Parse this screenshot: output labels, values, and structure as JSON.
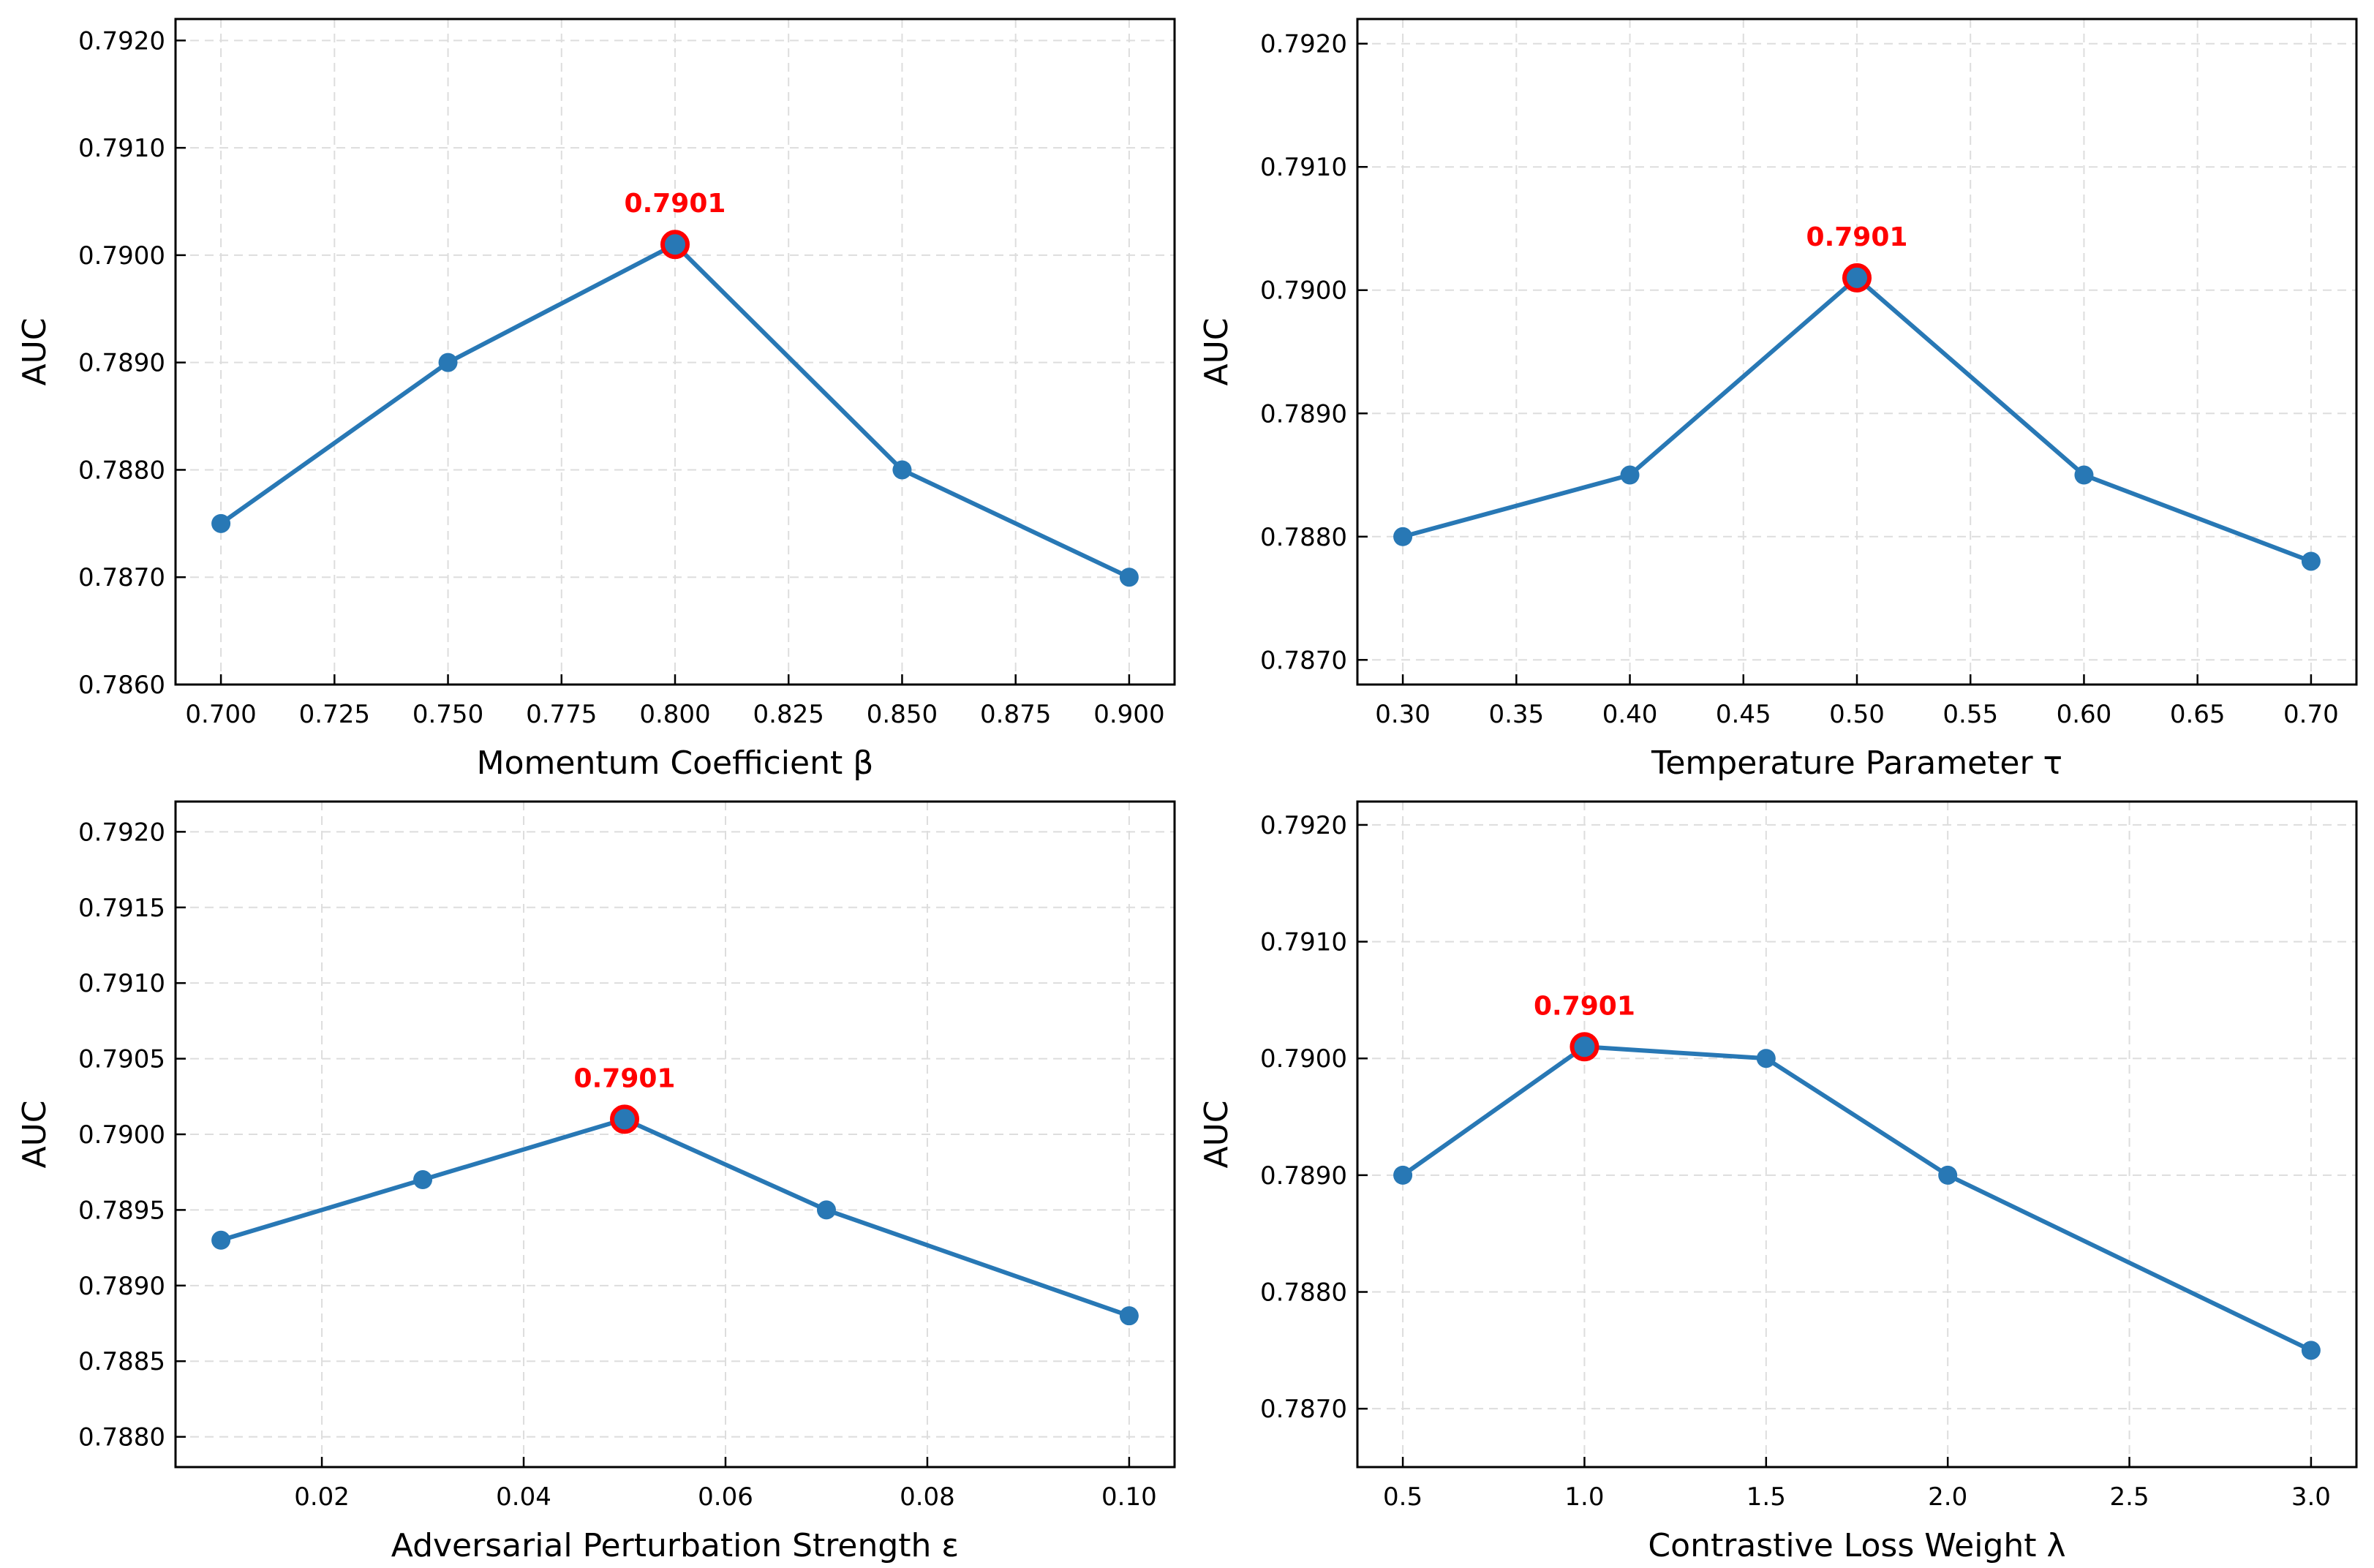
{
  "figure": {
    "colors": {
      "line": "#2878b5",
      "marker": "#2878b5",
      "highlight": "#ff0000",
      "grid": "#dddddd",
      "axis": "#000000"
    }
  },
  "chart_data": [
    {
      "type": "line",
      "title": "",
      "xlabel": "Momentum Coefficient β",
      "ylabel": "AUC",
      "x": [
        0.7,
        0.75,
        0.8,
        0.85,
        0.9
      ],
      "y": [
        0.7875,
        0.789,
        0.7901,
        0.788,
        0.787
      ],
      "xlim": [
        0.69,
        0.91
      ],
      "ylim": [
        0.786,
        0.7922
      ],
      "xticks": [
        0.7,
        0.725,
        0.75,
        0.775,
        0.8,
        0.825,
        0.85,
        0.875,
        0.9
      ],
      "xtick_labels": [
        "0.700",
        "0.725",
        "0.750",
        "0.775",
        "0.800",
        "0.825",
        "0.850",
        "0.875",
        "0.900"
      ],
      "yticks": [
        0.786,
        0.787,
        0.788,
        0.789,
        0.79,
        0.791,
        0.792
      ],
      "ytick_labels": [
        "0.7860",
        "0.7870",
        "0.7880",
        "0.7890",
        "0.7900",
        "0.7910",
        "0.7920"
      ],
      "best_index": 2,
      "annotation": "0.7901",
      "grid": true
    },
    {
      "type": "line",
      "title": "",
      "xlabel": "Temperature Parameter τ",
      "ylabel": "AUC",
      "x": [
        0.3,
        0.4,
        0.5,
        0.6,
        0.7
      ],
      "y": [
        0.788,
        0.7885,
        0.7901,
        0.7885,
        0.7878
      ],
      "xlim": [
        0.28,
        0.72
      ],
      "ylim": [
        0.7868,
        0.7922
      ],
      "xticks": [
        0.3,
        0.35,
        0.4,
        0.45,
        0.5,
        0.55,
        0.6,
        0.65,
        0.7
      ],
      "xtick_labels": [
        "0.30",
        "0.35",
        "0.40",
        "0.45",
        "0.50",
        "0.55",
        "0.60",
        "0.65",
        "0.70"
      ],
      "yticks": [
        0.787,
        0.788,
        0.789,
        0.79,
        0.791,
        0.792
      ],
      "ytick_labels": [
        "0.7870",
        "0.7880",
        "0.7890",
        "0.7900",
        "0.7910",
        "0.7920"
      ],
      "best_index": 2,
      "annotation": "0.7901",
      "grid": true
    },
    {
      "type": "line",
      "title": "",
      "xlabel": "Adversarial Perturbation Strength ε",
      "ylabel": "AUC",
      "x": [
        0.01,
        0.03,
        0.05,
        0.07,
        0.1
      ],
      "y": [
        0.7893,
        0.7897,
        0.7901,
        0.7895,
        0.7888
      ],
      "xlim": [
        0.0055,
        0.1045
      ],
      "ylim": [
        0.7878,
        0.7922
      ],
      "xticks": [
        0.02,
        0.04,
        0.06,
        0.08,
        0.1
      ],
      "xtick_labels": [
        "0.02",
        "0.04",
        "0.06",
        "0.08",
        "0.10"
      ],
      "yticks": [
        0.788,
        0.7885,
        0.789,
        0.7895,
        0.79,
        0.7905,
        0.791,
        0.7915,
        0.792
      ],
      "ytick_labels": [
        "0.7880",
        "0.7885",
        "0.7890",
        "0.7895",
        "0.7900",
        "0.7905",
        "0.7910",
        "0.7915",
        "0.7920"
      ],
      "best_index": 2,
      "annotation": "0.7901",
      "grid": true
    },
    {
      "type": "line",
      "title": "",
      "xlabel": "Contrastive Loss Weight λ",
      "ylabel": "AUC",
      "x": [
        0.5,
        1.0,
        1.5,
        2.0,
        3.0
      ],
      "y": [
        0.789,
        0.7901,
        0.79,
        0.789,
        0.7875
      ],
      "xlim": [
        0.375,
        3.125
      ],
      "ylim": [
        0.7865,
        0.7922
      ],
      "xticks": [
        0.5,
        1.0,
        1.5,
        2.0,
        2.5,
        3.0
      ],
      "xtick_labels": [
        "0.5",
        "1.0",
        "1.5",
        "2.0",
        "2.5",
        "3.0"
      ],
      "yticks": [
        0.787,
        0.788,
        0.789,
        0.79,
        0.791,
        0.792
      ],
      "ytick_labels": [
        "0.7870",
        "0.7880",
        "0.7890",
        "0.7900",
        "0.7910",
        "0.7920"
      ],
      "best_index": 1,
      "annotation": "0.7901",
      "grid": true
    }
  ]
}
